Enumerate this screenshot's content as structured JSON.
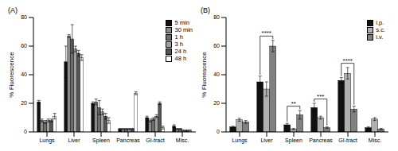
{
  "chart_data": [
    {
      "type": "bar",
      "title": "(A)",
      "y_label": "% Fluorescence",
      "categories": [
        "Lungs",
        "Liver",
        "Spleen",
        "Pancreas",
        "GI-tract",
        "Misc."
      ],
      "ylim": [
        0,
        80
      ],
      "yticks": [
        0,
        20,
        40,
        60,
        80
      ],
      "legend": "upper right",
      "series": [
        {
          "name": "5 min",
          "color": "#111111",
          "values": [
            21,
            49,
            20,
            2,
            10,
            4
          ],
          "errors": [
            1,
            11,
            1,
            0.5,
            1,
            1
          ]
        },
        {
          "name": "30 min",
          "color": "#8a8a8a",
          "values": [
            8,
            67,
            21,
            2,
            8,
            2
          ],
          "errors": [
            1,
            1,
            2,
            0.5,
            1,
            0.5
          ]
        },
        {
          "name": "1 h",
          "color": "#6e6e6e",
          "values": [
            7,
            65,
            17,
            2,
            9,
            2
          ],
          "errors": [
            1,
            10,
            5,
            0.5,
            1,
            0.5
          ]
        },
        {
          "name": "3 h",
          "color": "#a0a0a0",
          "values": [
            8,
            58,
            14,
            2,
            11,
            1
          ],
          "errors": [
            1,
            2,
            2,
            0.5,
            1,
            0.5
          ]
        },
        {
          "name": "24 h",
          "color": "#555555",
          "values": [
            8,
            55,
            11,
            2,
            20,
            1
          ],
          "errors": [
            1,
            2,
            2,
            0.5,
            1,
            0.5
          ]
        },
        {
          "name": "48 h",
          "color": "#ffffff",
          "values": [
            11,
            52,
            8,
            27,
            3,
            1
          ],
          "errors": [
            2,
            2,
            2,
            1,
            1,
            0.5
          ]
        }
      ]
    },
    {
      "type": "bar",
      "title": "(B)",
      "y_label": "% Fluorescence",
      "categories": [
        "Lungs",
        "Liver",
        "Spleen",
        "Pancreas",
        "GI-tract",
        "Misc."
      ],
      "ylim": [
        0,
        80
      ],
      "yticks": [
        0,
        20,
        40,
        60,
        80
      ],
      "legend": "upper right",
      "series": [
        {
          "name": "i.p.",
          "color": "#111111",
          "values": [
            3.5,
            35,
            5,
            17,
            36,
            3
          ],
          "errors": [
            0.5,
            4,
            1,
            3,
            2,
            0.5
          ]
        },
        {
          "name": "s.c.",
          "color": "#b0b0b0",
          "values": [
            8.5,
            30,
            2,
            10,
            41,
            9
          ],
          "errors": [
            1,
            5,
            0.5,
            1,
            4,
            1
          ]
        },
        {
          "name": "i.v.",
          "color": "#808080",
          "values": [
            7,
            60,
            12,
            3,
            16,
            2
          ],
          "errors": [
            1,
            4,
            3,
            0.5,
            2,
            0.5
          ]
        }
      ],
      "annotations": [
        {
          "category": "Liver",
          "from": "i.p.",
          "to": "i.v.",
          "label": "****"
        },
        {
          "category": "Spleen",
          "from": "i.p.",
          "to": "i.v.",
          "label": "**"
        },
        {
          "category": "Pancreas",
          "from": "i.p.",
          "to": "i.v.",
          "label": "***"
        },
        {
          "category": "GI-tract",
          "from": "i.p.",
          "to": "i.v.",
          "label": "****"
        }
      ]
    }
  ]
}
